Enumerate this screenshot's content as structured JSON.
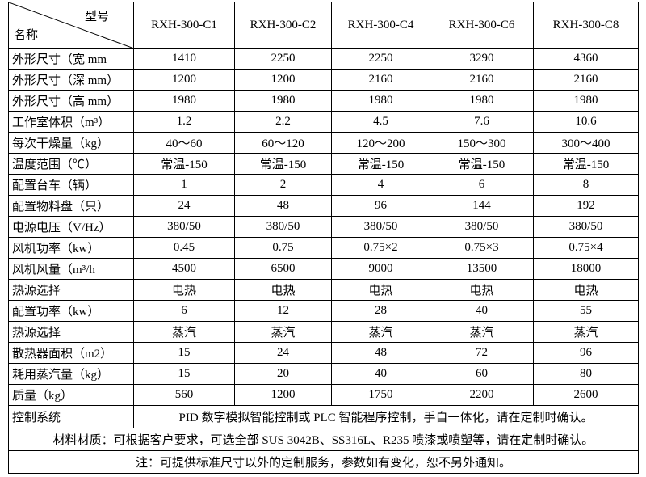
{
  "header": {
    "corner_top": "型号",
    "corner_bottom": "名称",
    "models": [
      "RXH-300-C1",
      "RXH-300-C2",
      "RXH-300-C4",
      "RXH-300-C6",
      "RXH-300-C8"
    ]
  },
  "table": {
    "rows": [
      {
        "label": "外形尺寸（宽 mm",
        "cells": [
          "1410",
          "2250",
          "2250",
          "3290",
          "4360"
        ]
      },
      {
        "label": "外形尺寸（深 mm）",
        "cells": [
          "1200",
          "1200",
          "2160",
          "2160",
          "2160"
        ]
      },
      {
        "label": "外形尺寸（高 mm）",
        "cells": [
          "1980",
          "1980",
          "1980",
          "1980",
          "1980"
        ]
      },
      {
        "label": "工作室体积（m³）",
        "cells": [
          "1.2",
          "2.2",
          "4.5",
          "7.6",
          "10.6"
        ]
      },
      {
        "label": "每次干燥量（kg）",
        "cells": [
          "40～60",
          "60～120",
          "120～200",
          "150～300",
          "300～400"
        ]
      },
      {
        "label": "温度范围（℃）",
        "cells": [
          "常温-150",
          "常温-150",
          "常温-150",
          "常温-150",
          "常温-150"
        ]
      },
      {
        "label": "配置台车（辆）",
        "cells": [
          "1",
          "2",
          "4",
          "6",
          "8"
        ]
      },
      {
        "label": "配置物料盘（只）",
        "cells": [
          "24",
          "48",
          "96",
          "144",
          "192"
        ]
      },
      {
        "label": "电源电压（V/Hz）",
        "cells": [
          "380/50",
          "380/50",
          "380/50",
          "380/50",
          "380/50"
        ]
      },
      {
        "label": "风机功率（kw）",
        "cells": [
          "0.45",
          "0.75",
          "0.75×2",
          "0.75×3",
          "0.75×4"
        ]
      },
      {
        "label": "风机风量（m³/h",
        "cells": [
          "4500",
          "6500",
          "9000",
          "13500",
          "18000"
        ]
      },
      {
        "label": "热源选择",
        "cells": [
          "电热",
          "电热",
          "电热",
          "电热",
          "电热"
        ]
      },
      {
        "label": "配置功率（kw）",
        "cells": [
          "6",
          "12",
          "28",
          "40",
          "55"
        ]
      },
      {
        "label": "热源选择",
        "cells": [
          "蒸汽",
          "蒸汽",
          "蒸汽",
          "蒸汽",
          "蒸汽"
        ]
      },
      {
        "label": "散热器面积（m2）",
        "cells": [
          "15",
          "24",
          "48",
          "72",
          "96"
        ]
      },
      {
        "label": "耗用蒸汽量（kg）",
        "cells": [
          "15",
          "20",
          "40",
          "60",
          "80"
        ]
      },
      {
        "label": "质量（kg）",
        "cells": [
          "560",
          "1200",
          "1750",
          "2200",
          "2600"
        ]
      }
    ]
  },
  "footer": {
    "control": {
      "label": "控制系统",
      "text": "PID 数字模拟智能控制或 PLC 智能程序控制，手自一体化，请在定制时确认。"
    },
    "material": "材料材质：可根据客户要求，可选全部 SUS 3042B、SS316L、R235 喷漆或喷塑等，请在定制时确认。",
    "note": "注：可提供标准尺寸以外的定制服务，参数如有变化，恕不另外通知。"
  }
}
